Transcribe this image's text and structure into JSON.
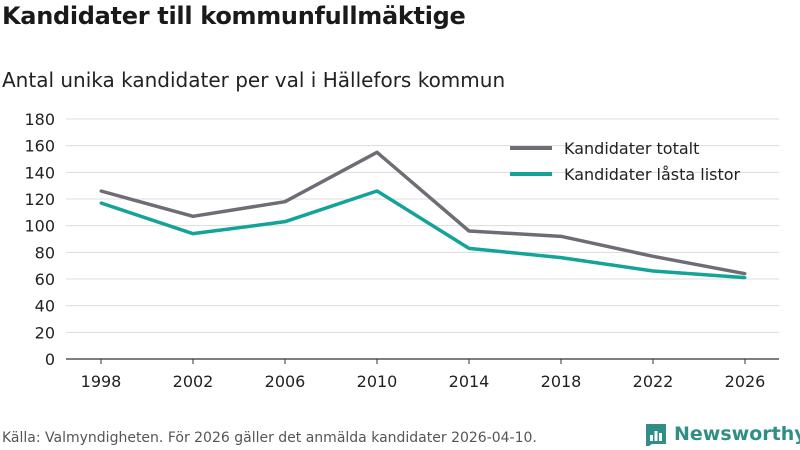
{
  "header": {
    "title": "Kandidater till kommunfullmäktige",
    "subtitle": "Antal unika kandidater per val i Hällefors kommun"
  },
  "footer": {
    "source": "Källa: Valmyndigheten. För 2026 gäller det anmälda kandidater 2026-04-10.",
    "brand": "Newsworthy",
    "brand_icon": "bar-chart-logo-icon"
  },
  "colors": {
    "series_total": "#6e6d75",
    "series_locked": "#14a398",
    "grid": "#dcdcdc",
    "axis": "#333333",
    "brand": "#2f8f86"
  },
  "chart_data": {
    "type": "line",
    "title": "Kandidater till kommunfullmäktige",
    "subtitle": "Antal unika kandidater per val i Hällefors kommun",
    "xlabel": "",
    "ylabel": "",
    "x": [
      "1998",
      "2002",
      "2006",
      "2010",
      "2014",
      "2018",
      "2022",
      "2026"
    ],
    "ylim": [
      0,
      180
    ],
    "yticks": [
      0,
      20,
      40,
      60,
      80,
      100,
      120,
      140,
      160,
      180
    ],
    "grid": true,
    "legend_position": "top-right",
    "series": [
      {
        "name": "Kandidater totalt",
        "values": [
          126,
          107,
          118,
          155,
          96,
          92,
          77,
          64
        ]
      },
      {
        "name": "Kandidater låsta listor",
        "values": [
          117,
          94,
          103,
          126,
          83,
          76,
          66,
          61
        ]
      }
    ]
  }
}
